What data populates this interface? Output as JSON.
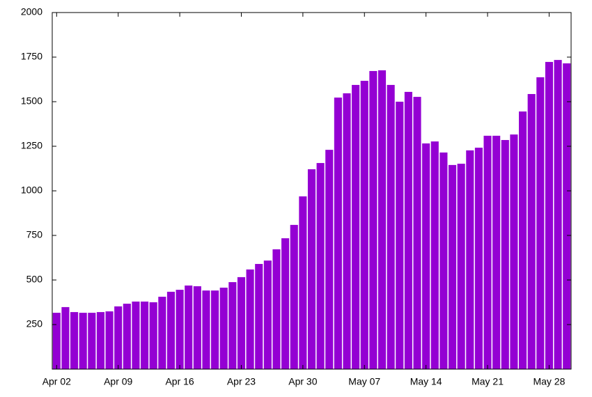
{
  "chart_data": {
    "type": "bar",
    "color": "#9400d3",
    "grid": false,
    "categories": [
      "Apr 02",
      null,
      null,
      null,
      null,
      null,
      null,
      "Apr 09",
      null,
      null,
      null,
      null,
      null,
      null,
      "Apr 16",
      null,
      null,
      null,
      null,
      null,
      null,
      "Apr 23",
      null,
      null,
      null,
      null,
      null,
      null,
      "Apr 30",
      null,
      null,
      null,
      null,
      null,
      null,
      "May 07",
      null,
      null,
      null,
      null,
      null,
      null,
      "May 14",
      null,
      null,
      null,
      null,
      null,
      null,
      "May 21",
      null,
      null,
      null,
      null,
      null,
      null,
      "May 28",
      null,
      null
    ],
    "values": [
      316,
      348,
      320,
      316,
      316,
      320,
      324,
      352,
      367,
      379,
      379,
      375,
      406,
      434,
      445,
      469,
      465,
      441,
      441,
      457,
      488,
      516,
      559,
      590,
      609,
      672,
      734,
      809,
      969,
      1121,
      1156,
      1230,
      1523,
      1547,
      1594,
      1617,
      1672,
      1676,
      1594,
      1500,
      1555,
      1527,
      1266,
      1277,
      1215,
      1145,
      1152,
      1227,
      1242,
      1309,
      1309,
      1285,
      1316,
      1445,
      1543,
      1637,
      1723,
      1734,
      1715
    ],
    "ylim": [
      0,
      2000
    ],
    "yticks": [
      250,
      500,
      750,
      1000,
      1250,
      1500,
      1750,
      2000
    ]
  }
}
